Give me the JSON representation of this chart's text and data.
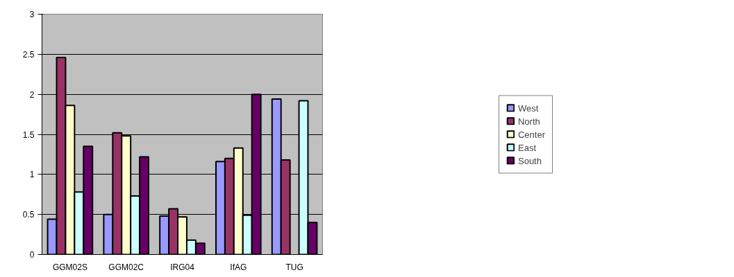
{
  "chart_data": {
    "type": "bar",
    "categories": [
      "GGM02S",
      "GGM02C",
      "IRG04",
      "IfAG",
      "TUG"
    ],
    "series": [
      {
        "name": "West",
        "color": "#9999ff",
        "values": [
          0.44,
          0.5,
          0.48,
          1.16,
          1.94
        ]
      },
      {
        "name": "North",
        "color": "#993366",
        "values": [
          2.46,
          1.52,
          0.57,
          1.2,
          1.18
        ]
      },
      {
        "name": "Center",
        "color": "#ffffcc",
        "values": [
          1.86,
          1.48,
          0.47,
          1.33,
          null
        ]
      },
      {
        "name": "East",
        "color": "#ccffff",
        "values": [
          0.78,
          0.73,
          0.18,
          0.49,
          1.92
        ]
      },
      {
        "name": "South",
        "color": "#660066",
        "values": [
          1.35,
          1.22,
          0.14,
          2.0,
          0.4
        ]
      }
    ],
    "ylim": [
      0,
      3
    ],
    "yticks": [
      0,
      0.5,
      1,
      1.5,
      2,
      2.5,
      3
    ],
    "grid": "y",
    "legend": "right"
  }
}
